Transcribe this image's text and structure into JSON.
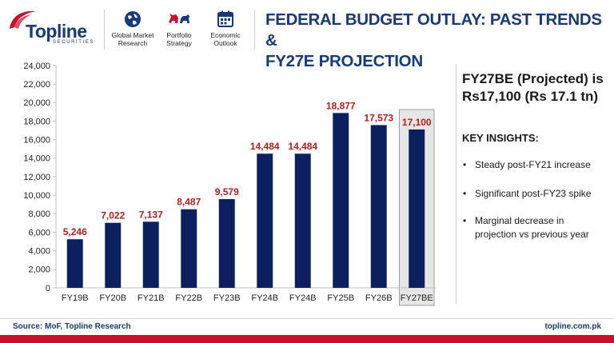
{
  "brand": {
    "name": "Topline",
    "tagline": "SECURITIES",
    "accent": "#c8102e",
    "primary": "#173a7a"
  },
  "nav": [
    {
      "icon": "globe-icon",
      "label_line1": "Global Market",
      "label_line2": "Research"
    },
    {
      "icon": "bull-bear-icon",
      "label_line1": "Portfolio",
      "label_line2": "Strategy"
    },
    {
      "icon": "calendar-icon",
      "label_line1": "Economic",
      "label_line2": "Outlook"
    }
  ],
  "title_line1": "FEDERAL BUDGET OUTLAY: PAST TRENDS &",
  "title_line2": "FY27E PROJECTION",
  "chart_data": {
    "type": "bar",
    "categories": [
      "FY19B",
      "FY20B",
      "FY21B",
      "FY22B",
      "FY23B",
      "FY24B",
      "FY24B",
      "FY25B",
      "FY26B",
      "FY27BE"
    ],
    "values": [
      5246,
      7022,
      7137,
      8487,
      9579,
      14484,
      14484,
      18877,
      17573,
      17100
    ],
    "data_labels": [
      "5,246",
      "7,022",
      "7,137",
      "8,487",
      "9,579",
      "14,484",
      "14,484",
      "18,877",
      "17,573",
      "17,100"
    ],
    "yticks": [
      "0",
      "2,000",
      "4,000",
      "6,000",
      "8,000",
      "10,000",
      "12,000",
      "14,000",
      "16,000",
      "18,000",
      "20,000",
      "22,000",
      "24,000"
    ],
    "ylim": [
      0,
      24000
    ],
    "ystep": 2000,
    "highlight_index": 9,
    "bar_color": "#0c1f5e",
    "label_color": "#b71c1c",
    "highlight_fill": "#e6e6e6",
    "highlight_stroke": "#9e9e9e",
    "grid": false
  },
  "panel": {
    "projection_line1": "FY27BE (Projected) is",
    "projection_line2": "Rs17,100 (Rs 17.1 tn)",
    "insights_title": "KEY INSIGHTS:",
    "bullet": "•",
    "insights": [
      {
        "line1": "Steady post-FY21 increase",
        "line2": ""
      },
      {
        "line1": "Significant post-FY23 spike",
        "line2": ""
      },
      {
        "line1": "Marginal decrease in",
        "line2": "projection vs previous year"
      }
    ]
  },
  "footer": {
    "source": "Source: MoF, Topline Research",
    "website": "topline.com.pk"
  }
}
